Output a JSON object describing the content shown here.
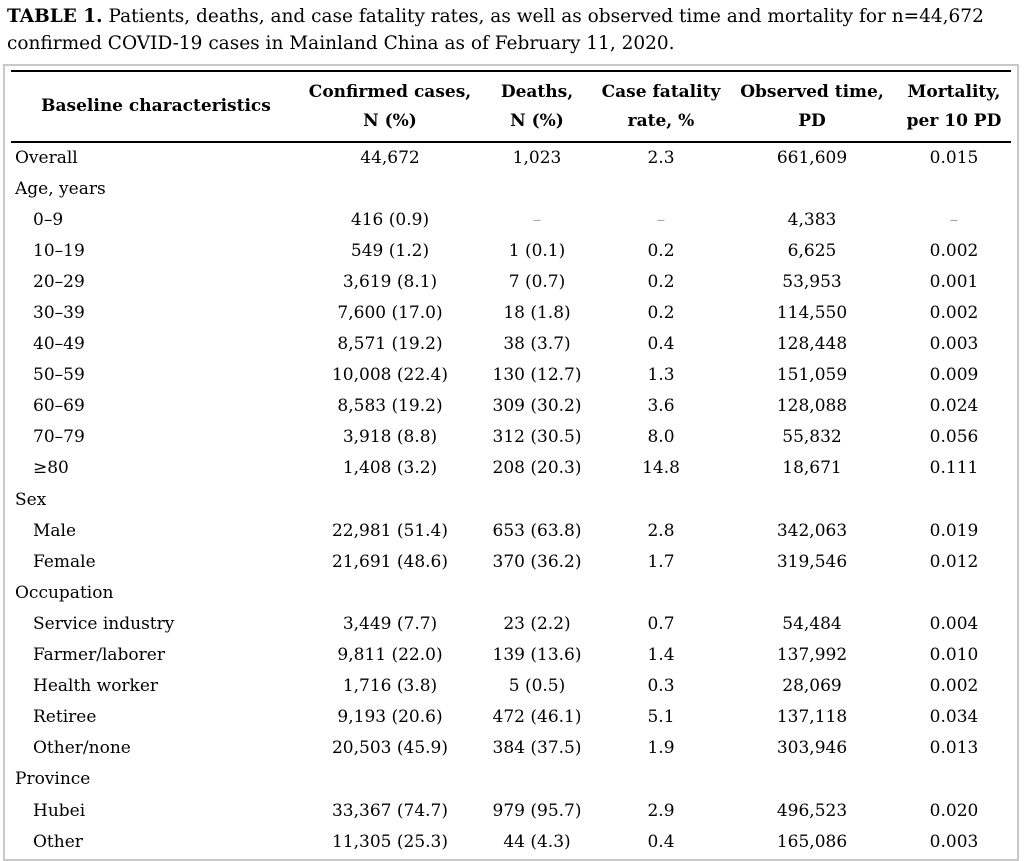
{
  "caption": {
    "label": "TABLE 1.",
    "text": "Patients, deaths, and case fatality rates, as well as observed time and mortality for n=44,672\nconfirmed COVID-19 cases in Mainland China as of February 11, 2020."
  },
  "table": {
    "missing_value_marker": "–",
    "columns": [
      {
        "label": "Baseline characteristics"
      },
      {
        "label": "Confirmed cases,\nN (%)"
      },
      {
        "label": "Deaths,\nN (%)"
      },
      {
        "label": "Case fatality\nrate, %"
      },
      {
        "label": "Observed time,\nPD"
      },
      {
        "label": "Mortality,\nper 10 PD"
      }
    ],
    "rows": [
      {
        "type": "data",
        "indent": false,
        "label": "Overall",
        "values": [
          "44,672",
          "1,023",
          "2.3",
          "661,609",
          "0.015"
        ]
      },
      {
        "type": "section",
        "label": "Age, years"
      },
      {
        "type": "data",
        "indent": true,
        "label": "0–9",
        "values": [
          "416 (0.9)",
          "–",
          "–",
          "4,383",
          "–"
        ]
      },
      {
        "type": "data",
        "indent": true,
        "label": "10–19",
        "values": [
          "549 (1.2)",
          "1 (0.1)",
          "0.2",
          "6,625",
          "0.002"
        ]
      },
      {
        "type": "data",
        "indent": true,
        "label": "20–29",
        "values": [
          "3,619 (8.1)",
          "7 (0.7)",
          "0.2",
          "53,953",
          "0.001"
        ]
      },
      {
        "type": "data",
        "indent": true,
        "label": "30–39",
        "values": [
          "7,600 (17.0)",
          "18 (1.8)",
          "0.2",
          "114,550",
          "0.002"
        ]
      },
      {
        "type": "data",
        "indent": true,
        "label": "40–49",
        "values": [
          "8,571 (19.2)",
          "38 (3.7)",
          "0.4",
          "128,448",
          "0.003"
        ]
      },
      {
        "type": "data",
        "indent": true,
        "label": "50–59",
        "values": [
          "10,008 (22.4)",
          "130 (12.7)",
          "1.3",
          "151,059",
          "0.009"
        ]
      },
      {
        "type": "data",
        "indent": true,
        "label": "60–69",
        "values": [
          "8,583 (19.2)",
          "309 (30.2)",
          "3.6",
          "128,088",
          "0.024"
        ]
      },
      {
        "type": "data",
        "indent": true,
        "label": "70–79",
        "values": [
          "3,918 (8.8)",
          "312 (30.5)",
          "8.0",
          "55,832",
          "0.056"
        ]
      },
      {
        "type": "data",
        "indent": true,
        "label": "≥80",
        "values": [
          "1,408 (3.2)",
          "208 (20.3)",
          "14.8",
          "18,671",
          "0.111"
        ]
      },
      {
        "type": "section",
        "label": "Sex"
      },
      {
        "type": "data",
        "indent": true,
        "label": "Male",
        "values": [
          "22,981 (51.4)",
          "653 (63.8)",
          "2.8",
          "342,063",
          "0.019"
        ]
      },
      {
        "type": "data",
        "indent": true,
        "label": "Female",
        "values": [
          "21,691 (48.6)",
          "370 (36.2)",
          "1.7",
          "319,546",
          "0.012"
        ]
      },
      {
        "type": "section",
        "label": "Occupation"
      },
      {
        "type": "data",
        "indent": true,
        "label": "Service industry",
        "values": [
          "3,449 (7.7)",
          "23 (2.2)",
          "0.7",
          "54,484",
          "0.004"
        ]
      },
      {
        "type": "data",
        "indent": true,
        "label": "Farmer/laborer",
        "values": [
          "9,811 (22.0)",
          "139 (13.6)",
          "1.4",
          "137,992",
          "0.010"
        ]
      },
      {
        "type": "data",
        "indent": true,
        "label": "Health worker",
        "values": [
          "1,716 (3.8)",
          "5 (0.5)",
          "0.3",
          "28,069",
          "0.002"
        ]
      },
      {
        "type": "data",
        "indent": true,
        "label": "Retiree",
        "values": [
          "9,193 (20.6)",
          "472 (46.1)",
          "5.1",
          "137,118",
          "0.034"
        ]
      },
      {
        "type": "data",
        "indent": true,
        "label": "Other/none",
        "values": [
          "20,503 (45.9)",
          "384 (37.5)",
          "1.9",
          "303,946",
          "0.013"
        ]
      },
      {
        "type": "section",
        "label": "Province"
      },
      {
        "type": "data",
        "indent": true,
        "label": "Hubei",
        "values": [
          "33,367 (74.7)",
          "979 (95.7)",
          "2.9",
          "496,523",
          "0.020"
        ]
      },
      {
        "type": "data",
        "indent": true,
        "label": "Other",
        "values": [
          "11,305 (25.3)",
          "44 (4.3)",
          "0.4",
          "165,086",
          "0.003"
        ]
      }
    ]
  },
  "colors": {
    "text": "#000000",
    "rule": "#000000",
    "outer_border": "#c8c8c8",
    "missing_dash": "#a6a6b0",
    "background": "#ffffff"
  }
}
